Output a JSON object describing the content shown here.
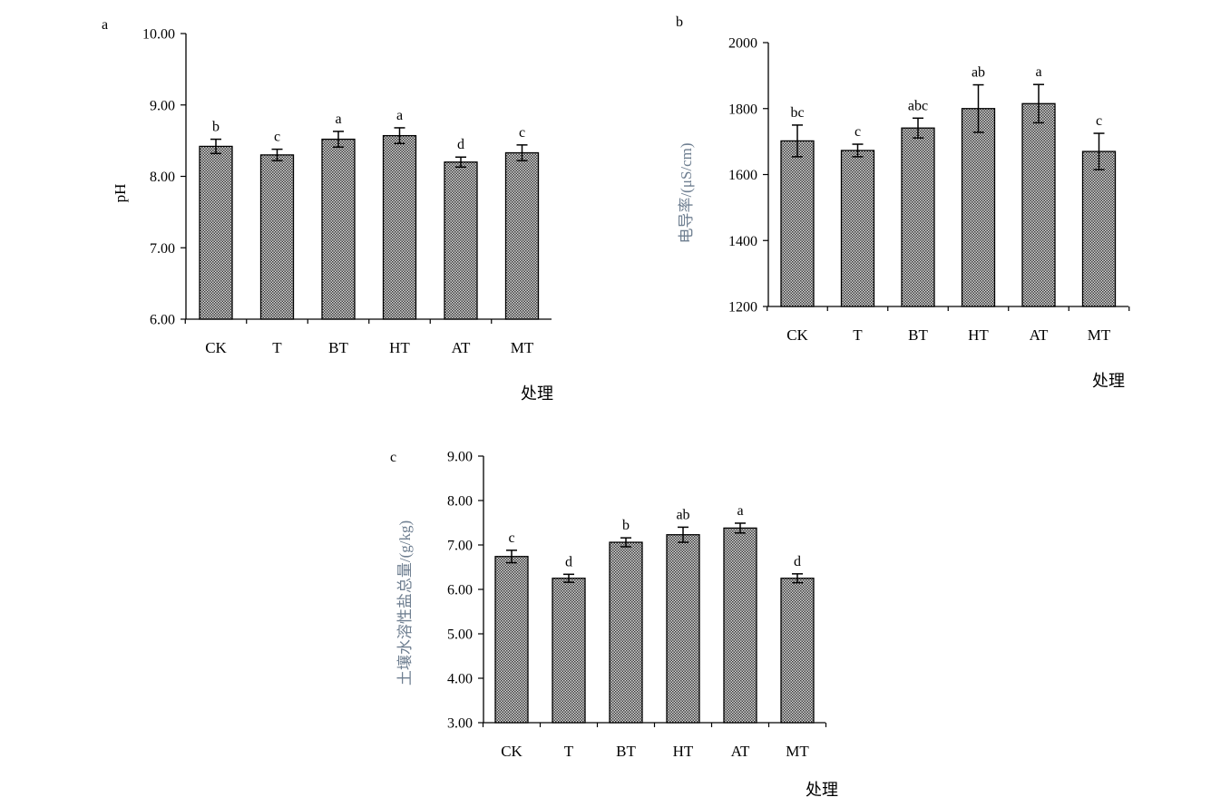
{
  "chart_data": [
    {
      "panel": "a",
      "type": "bar",
      "categories": [
        "CK",
        "T",
        "BT",
        "HT",
        "AT",
        "MT"
      ],
      "values": [
        8.42,
        8.3,
        8.52,
        8.57,
        8.2,
        8.33
      ],
      "errors": [
        0.1,
        0.08,
        0.11,
        0.11,
        0.07,
        0.11
      ],
      "significance": [
        "b",
        "c",
        "a",
        "a",
        "d",
        "c"
      ],
      "ylabel": "pH",
      "xlabel": "处理",
      "ylim": [
        6.0,
        10.0
      ],
      "yticks": [
        "6.00",
        "7.00",
        "8.00",
        "9.00",
        "10.00"
      ]
    },
    {
      "panel": "b",
      "type": "bar",
      "categories": [
        "CK",
        "T",
        "BT",
        "HT",
        "AT",
        "MT"
      ],
      "values": [
        1702,
        1673,
        1741,
        1800,
        1815,
        1670
      ],
      "errors": [
        48,
        19,
        30,
        72,
        58,
        55
      ],
      "significance": [
        "bc",
        "c",
        "abc",
        "ab",
        "a",
        "c"
      ],
      "ylabel": "电导率/(μS/cm)",
      "xlabel": "处理",
      "ylim": [
        1200,
        2000
      ],
      "yticks": [
        "1200",
        "1400",
        "1600",
        "1800",
        "2000"
      ]
    },
    {
      "panel": "c",
      "type": "bar",
      "categories": [
        "CK",
        "T",
        "BT",
        "HT",
        "AT",
        "MT"
      ],
      "values": [
        6.74,
        6.25,
        7.06,
        7.23,
        7.38,
        6.25
      ],
      "errors": [
        0.14,
        0.09,
        0.1,
        0.17,
        0.11,
        0.1
      ],
      "significance": [
        "c",
        "d",
        "b",
        "ab",
        "a",
        "d"
      ],
      "ylabel": "土壤水溶性盐总量/(g/kg)",
      "xlabel": "处理",
      "ylim": [
        3.0,
        9.0
      ],
      "yticks": [
        "3.00",
        "4.00",
        "5.00",
        "6.00",
        "7.00",
        "8.00",
        "9.00"
      ]
    }
  ],
  "style": {
    "bar_fill": "#8c8c8c",
    "axis_color": "#000000",
    "ylabel_color_b": "#6f7f91",
    "ylabel_color_c": "#6f7f91"
  }
}
